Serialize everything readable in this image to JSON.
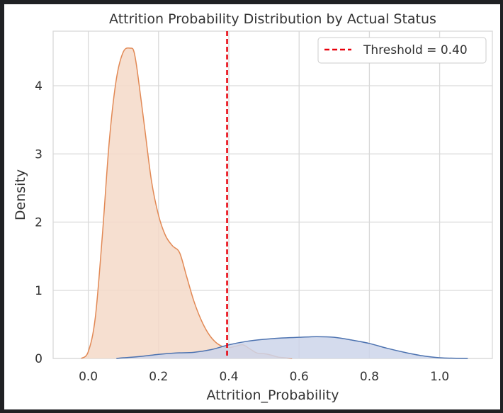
{
  "chart_data": {
    "type": "area",
    "title": "Attrition Probability Distribution by Actual Status",
    "xlabel": "Attrition_Probability",
    "ylabel": "Density",
    "xlim": [
      -0.1,
      1.15
    ],
    "ylim": [
      0,
      4.8
    ],
    "x_ticks": [
      0.0,
      0.2,
      0.4,
      0.6,
      0.8,
      1.0
    ],
    "x_tick_labels": [
      "0.0",
      "0.2",
      "0.4",
      "0.6",
      "0.8",
      "1.0"
    ],
    "y_ticks": [
      0,
      1,
      2,
      3,
      4
    ],
    "y_tick_labels": [
      "0",
      "1",
      "2",
      "3",
      "4"
    ],
    "grid": true,
    "legend_position": "top-right",
    "threshold": {
      "value": 0.395,
      "label": "Threshold = 0.40",
      "color": "#e8000b",
      "style": "dashed"
    },
    "series": [
      {
        "color": "#e28955",
        "fill_color": "#f5d9c8",
        "x": [
          -0.02,
          0.0,
          0.02,
          0.04,
          0.06,
          0.08,
          0.1,
          0.12,
          0.13,
          0.14,
          0.16,
          0.18,
          0.2,
          0.22,
          0.24,
          0.26,
          0.28,
          0.3,
          0.32,
          0.34,
          0.36,
          0.38,
          0.4,
          0.42,
          0.44,
          0.46,
          0.48,
          0.5,
          0.52,
          0.54,
          0.56,
          0.58
        ],
        "y": [
          0.0,
          0.1,
          0.6,
          1.8,
          3.2,
          4.1,
          4.5,
          4.55,
          4.5,
          4.2,
          3.4,
          2.6,
          2.1,
          1.8,
          1.65,
          1.55,
          1.2,
          0.85,
          0.58,
          0.38,
          0.25,
          0.18,
          0.16,
          0.18,
          0.2,
          0.14,
          0.08,
          0.07,
          0.05,
          0.02,
          0.01,
          0.0
        ]
      },
      {
        "color": "#4c72b0",
        "fill_color": "#cdd5ea",
        "x": [
          0.08,
          0.1,
          0.15,
          0.2,
          0.25,
          0.3,
          0.35,
          0.4,
          0.45,
          0.5,
          0.55,
          0.6,
          0.65,
          0.7,
          0.75,
          0.8,
          0.85,
          0.9,
          0.95,
          1.0,
          1.05,
          1.08
        ],
        "y": [
          0.0,
          0.01,
          0.03,
          0.06,
          0.08,
          0.09,
          0.13,
          0.2,
          0.25,
          0.28,
          0.3,
          0.31,
          0.32,
          0.31,
          0.27,
          0.22,
          0.15,
          0.09,
          0.04,
          0.01,
          0.003,
          0.0
        ]
      }
    ]
  }
}
